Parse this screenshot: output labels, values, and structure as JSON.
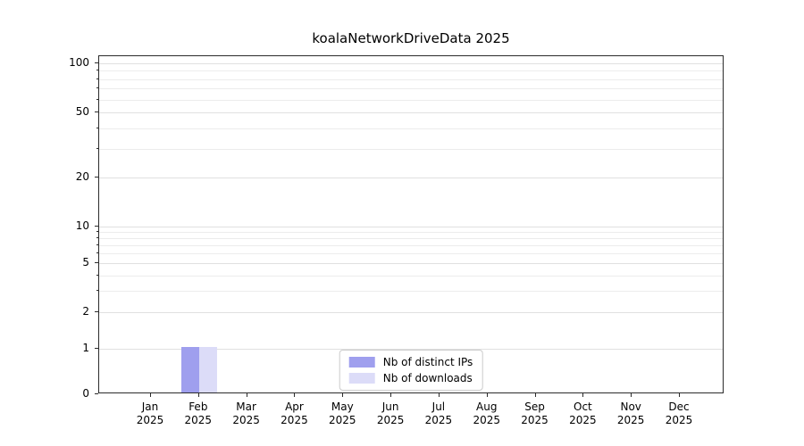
{
  "chart": {
    "title": "koalaNetworkDriveData 2025"
  },
  "chart_data": {
    "type": "bar",
    "title": "koalaNetworkDriveData 2025",
    "x_tick_months": [
      "Jan",
      "Feb",
      "Mar",
      "Apr",
      "May",
      "Jun",
      "Jul",
      "Aug",
      "Sep",
      "Oct",
      "Nov",
      "Dec"
    ],
    "x_tick_year": "2025",
    "categories": [
      "Jan 2025",
      "Feb 2025",
      "Mar 2025",
      "Apr 2025",
      "May 2025",
      "Jun 2025",
      "Jul 2025",
      "Aug 2025",
      "Sep 2025",
      "Oct 2025",
      "Nov 2025",
      "Dec 2025"
    ],
    "series": [
      {
        "name": "Nb of distinct IPs",
        "color": "#9f9fee",
        "values": [
          0,
          1,
          0,
          0,
          0,
          0,
          0,
          0,
          0,
          0,
          0,
          0
        ]
      },
      {
        "name": "Nb of downloads",
        "color": "#dcdcf8",
        "values": [
          0,
          1,
          0,
          0,
          0,
          0,
          0,
          0,
          0,
          0,
          0,
          0
        ]
      }
    ],
    "yscale": "symlog",
    "yticks": [
      0,
      1,
      2,
      5,
      10,
      20,
      50,
      100
    ],
    "minor_yticks": [
      3,
      4,
      6,
      7,
      8,
      9,
      30,
      40,
      60,
      70,
      80,
      90
    ],
    "ylim": [
      0,
      128
    ],
    "grid": true,
    "legend_position": "lower center inside",
    "colors": {
      "grid_major": "#e0e0e0",
      "grid_minor": "#ececec",
      "spine": "#2b2b2b"
    }
  }
}
